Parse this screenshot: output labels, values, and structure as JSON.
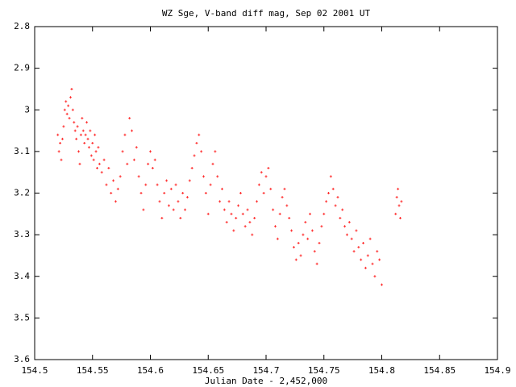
{
  "chart_data": {
    "type": "scatter",
    "title": "WZ Sge, V-band diff mag, Sep 02 2001 UT",
    "x_label": "Julian Date - 2,452,000",
    "xlim": [
      154.5,
      154.9
    ],
    "xticks": [
      154.5,
      154.55,
      154.6,
      154.65,
      154.7,
      154.75,
      154.8,
      154.85,
      154.9
    ],
    "ylim": [
      2.8,
      3.6
    ],
    "yticks": [
      2.8,
      2.9,
      3,
      3.1,
      3.2,
      3.3,
      3.4,
      3.5,
      3.6
    ],
    "y_reversed": true,
    "color": "#ff3030",
    "x": [
      154.52,
      154.521,
      154.522,
      154.523,
      154.524,
      154.525,
      154.526,
      154.527,
      154.528,
      154.529,
      154.53,
      154.531,
      154.532,
      154.533,
      154.534,
      154.535,
      154.536,
      154.537,
      154.538,
      154.539,
      154.54,
      154.541,
      154.542,
      154.543,
      154.544,
      154.545,
      154.546,
      154.547,
      154.548,
      154.549,
      154.55,
      154.551,
      154.552,
      154.553,
      154.554,
      154.555,
      154.556,
      154.558,
      154.56,
      154.562,
      154.564,
      154.566,
      154.568,
      154.57,
      154.572,
      154.574,
      154.576,
      154.578,
      154.58,
      154.582,
      154.584,
      154.586,
      154.588,
      154.59,
      154.592,
      154.594,
      154.596,
      154.598,
      154.6,
      154.602,
      154.604,
      154.606,
      154.608,
      154.61,
      154.612,
      154.614,
      154.616,
      154.618,
      154.62,
      154.622,
      154.624,
      154.626,
      154.628,
      154.63,
      154.632,
      154.634,
      154.636,
      154.638,
      154.64,
      154.642,
      154.644,
      154.646,
      154.648,
      154.65,
      154.652,
      154.654,
      154.656,
      154.658,
      154.66,
      154.662,
      154.664,
      154.666,
      154.668,
      154.67,
      154.672,
      154.674,
      154.676,
      154.678,
      154.68,
      154.682,
      154.684,
      154.686,
      154.688,
      154.69,
      154.692,
      154.694,
      154.696,
      154.698,
      154.7,
      154.702,
      154.704,
      154.706,
      154.708,
      154.71,
      154.712,
      154.714,
      154.716,
      154.718,
      154.72,
      154.722,
      154.724,
      154.726,
      154.728,
      154.73,
      154.732,
      154.734,
      154.736,
      154.738,
      154.74,
      154.742,
      154.744,
      154.746,
      154.748,
      154.75,
      154.752,
      154.754,
      154.756,
      154.758,
      154.76,
      154.762,
      154.764,
      154.766,
      154.768,
      154.77,
      154.772,
      154.774,
      154.776,
      154.778,
      154.78,
      154.782,
      154.784,
      154.786,
      154.788,
      154.79,
      154.792,
      154.794,
      154.796,
      154.798,
      154.8,
      154.812,
      154.813,
      154.814,
      154.815,
      154.816,
      154.817
    ],
    "values": [
      3.06,
      3.1,
      3.08,
      3.12,
      3.07,
      3.04,
      3.0,
      2.98,
      3.01,
      2.99,
      3.02,
      2.97,
      2.95,
      3.0,
      3.03,
      3.05,
      3.07,
      3.04,
      3.1,
      3.13,
      3.06,
      3.02,
      3.05,
      3.08,
      3.06,
      3.03,
      3.07,
      3.09,
      3.05,
      3.11,
      3.08,
      3.12,
      3.06,
      3.1,
      3.14,
      3.09,
      3.13,
      3.15,
      3.12,
      3.18,
      3.14,
      3.2,
      3.17,
      3.22,
      3.19,
      3.16,
      3.1,
      3.06,
      3.13,
      3.02,
      3.05,
      3.12,
      3.09,
      3.16,
      3.2,
      3.24,
      3.18,
      3.13,
      3.1,
      3.14,
      3.12,
      3.18,
      3.22,
      3.26,
      3.2,
      3.17,
      3.23,
      3.19,
      3.24,
      3.18,
      3.22,
      3.26,
      3.2,
      3.24,
      3.21,
      3.17,
      3.14,
      3.11,
      3.08,
      3.06,
      3.1,
      3.16,
      3.2,
      3.25,
      3.18,
      3.13,
      3.1,
      3.16,
      3.22,
      3.19,
      3.24,
      3.27,
      3.22,
      3.25,
      3.29,
      3.26,
      3.23,
      3.2,
      3.25,
      3.28,
      3.24,
      3.27,
      3.3,
      3.26,
      3.22,
      3.18,
      3.15,
      3.2,
      3.16,
      3.14,
      3.19,
      3.24,
      3.28,
      3.31,
      3.25,
      3.21,
      3.19,
      3.23,
      3.26,
      3.29,
      3.33,
      3.36,
      3.32,
      3.35,
      3.3,
      3.27,
      3.31,
      3.25,
      3.29,
      3.34,
      3.37,
      3.32,
      3.28,
      3.25,
      3.22,
      3.2,
      3.16,
      3.19,
      3.23,
      3.21,
      3.26,
      3.24,
      3.28,
      3.3,
      3.27,
      3.31,
      3.34,
      3.29,
      3.33,
      3.36,
      3.32,
      3.38,
      3.35,
      3.31,
      3.37,
      3.4,
      3.34,
      3.36,
      3.42,
      3.25,
      3.21,
      3.19,
      3.23,
      3.26,
      3.22
    ]
  }
}
